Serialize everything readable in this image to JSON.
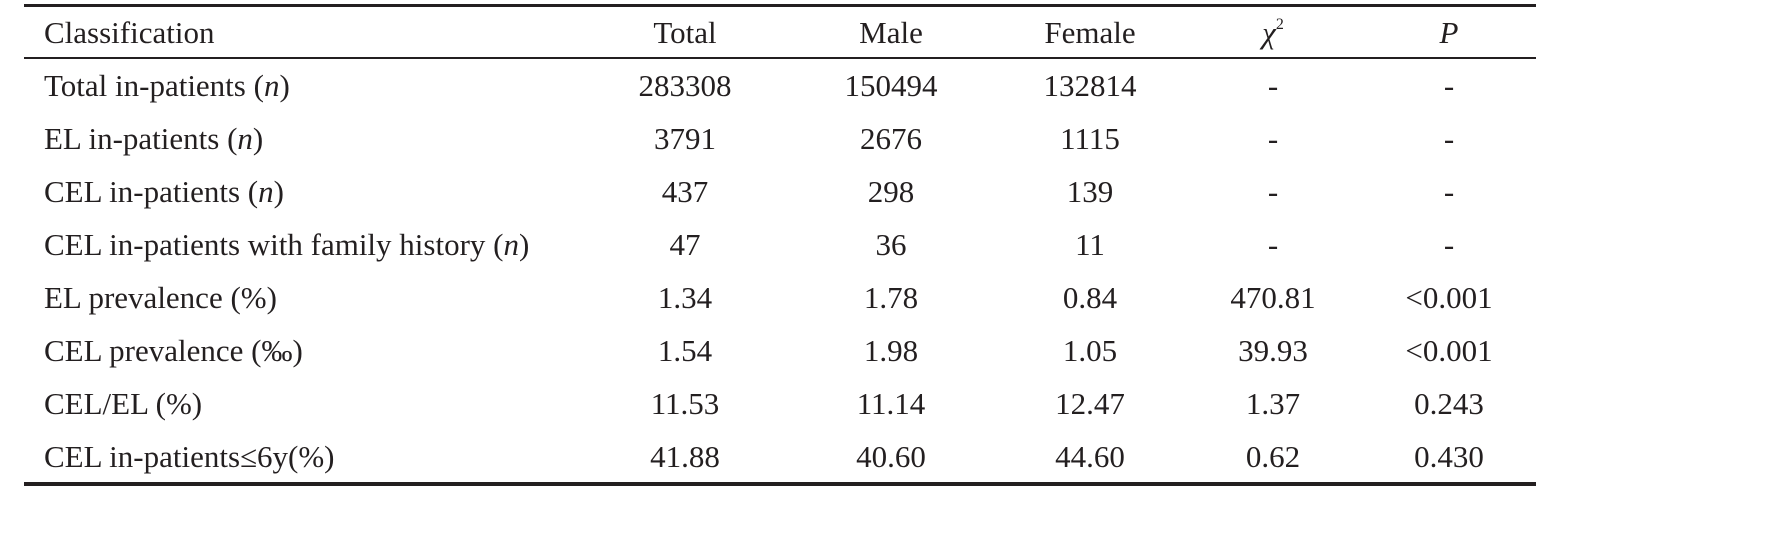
{
  "table": {
    "headers": {
      "classification": "Classification",
      "total": "Total",
      "male": "Male",
      "female": "Female",
      "chi_symbol": "χ",
      "chi_sup": "2",
      "p": "P"
    },
    "rows": [
      {
        "label_pre": "Total in-patients (",
        "label_ital": "n",
        "label_post": ")",
        "total": "283308",
        "male": "150494",
        "female": "132814",
        "chi2": "-",
        "p": "-"
      },
      {
        "label_pre": "EL in-patients (",
        "label_ital": "n",
        "label_post": ")",
        "total": "3791",
        "male": "2676",
        "female": "1115",
        "chi2": "-",
        "p": "-"
      },
      {
        "label_pre": "CEL in-patients (",
        "label_ital": "n",
        "label_post": ")",
        "total": "437",
        "male": "298",
        "female": "139",
        "chi2": "-",
        "p": "-"
      },
      {
        "label_pre": "CEL in-patients with family history (",
        "label_ital": "n",
        "label_post": ")",
        "total": "47",
        "male": "36",
        "female": "11",
        "chi2": "-",
        "p": "-"
      },
      {
        "label_pre": "EL prevalence (%)",
        "label_ital": "",
        "label_post": "",
        "total": "1.34",
        "male": "1.78",
        "female": "0.84",
        "chi2": "470.81",
        "p": "<0.001"
      },
      {
        "label_pre": "CEL prevalence (‰)",
        "label_ital": "",
        "label_post": "",
        "total": "1.54",
        "male": "1.98",
        "female": "1.05",
        "chi2": "39.93",
        "p": "<0.001"
      },
      {
        "label_pre": "CEL/EL (%)",
        "label_ital": "",
        "label_post": "",
        "total": "11.53",
        "male": "11.14",
        "female": "12.47",
        "chi2": "1.37",
        "p": "0.243"
      },
      {
        "label_pre": "CEL in-patients≤6y(%)",
        "label_ital": "",
        "label_post": "",
        "total": "41.88",
        "male": "40.60",
        "female": "44.60",
        "chi2": "0.62",
        "p": "0.430"
      }
    ]
  }
}
